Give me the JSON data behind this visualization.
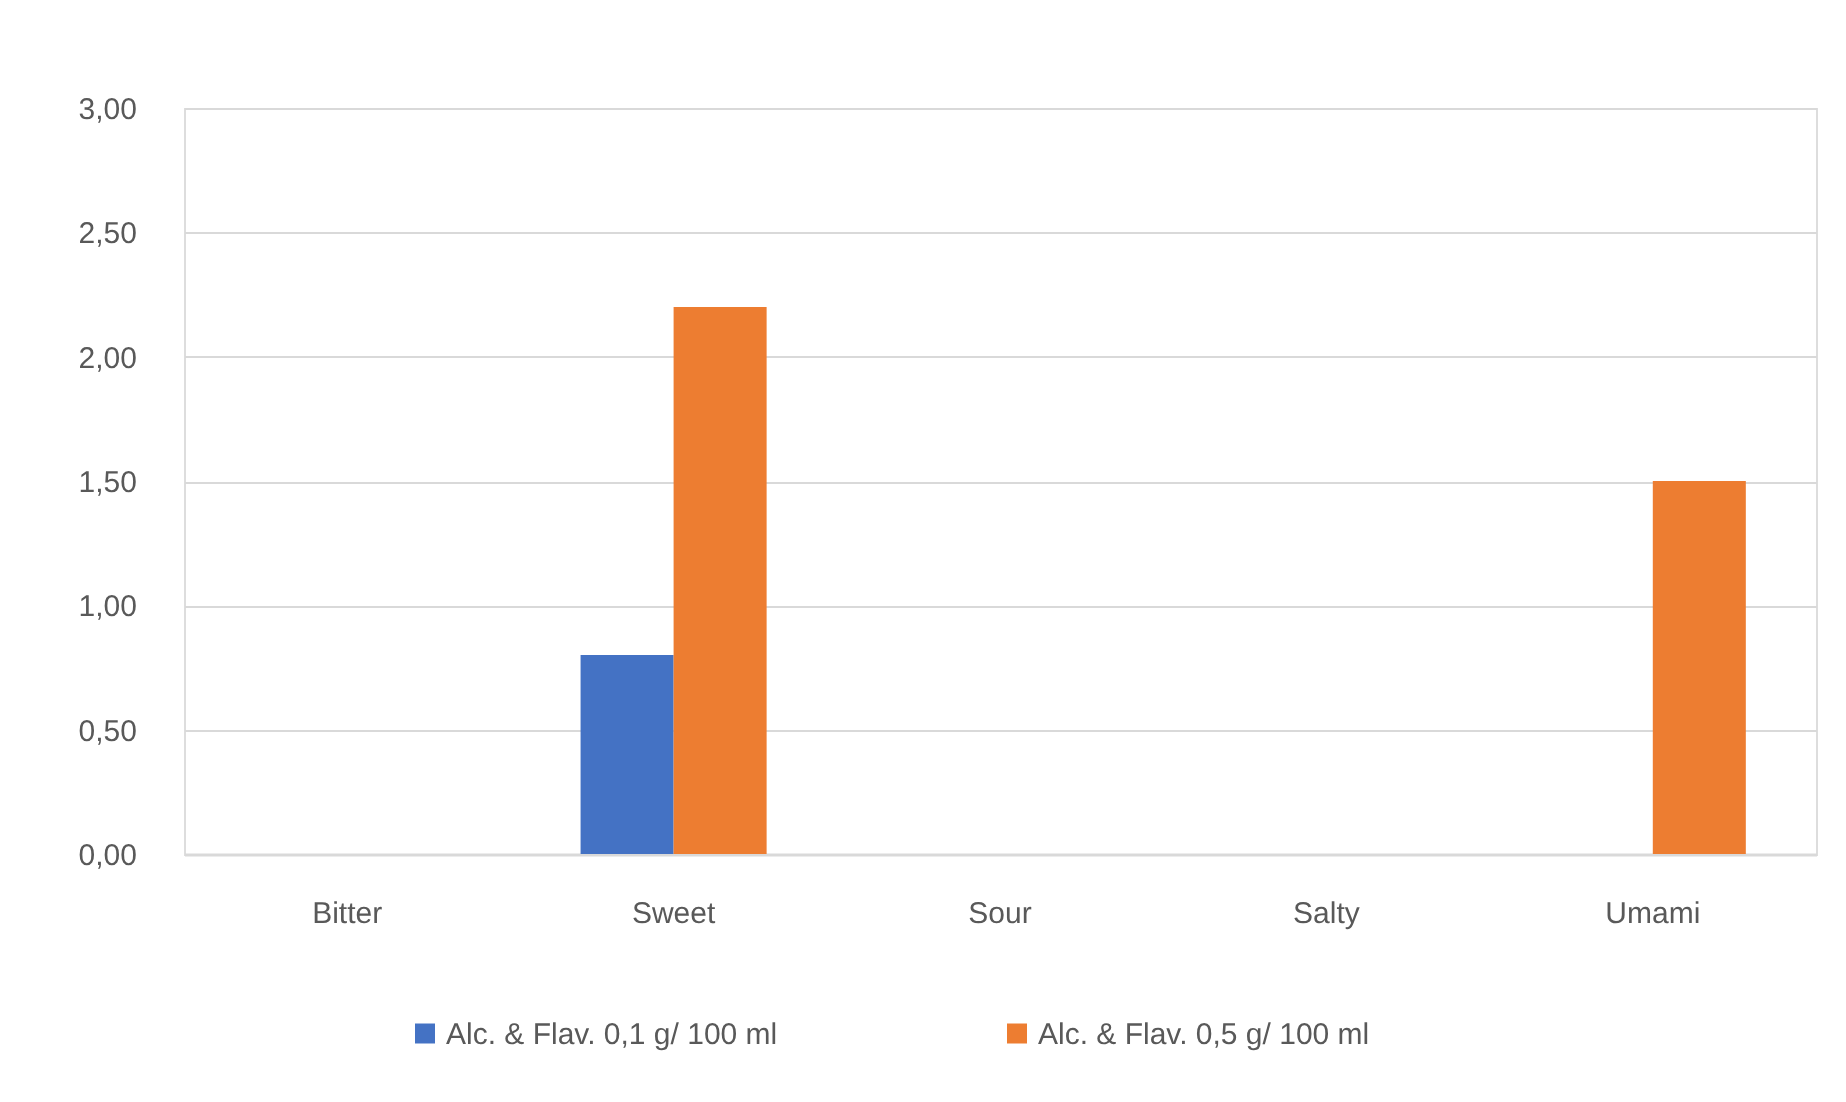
{
  "chart_data": {
    "type": "bar",
    "categories": [
      "Bitter",
      "Sweet",
      "Sour",
      "Salty",
      "Umami"
    ],
    "series": [
      {
        "name": "Alc. & Flav. 0,1 g/ 100 ml",
        "color": "#4472c4",
        "values": [
          null,
          0.8,
          null,
          null,
          null
        ]
      },
      {
        "name": "Alc. & Flav. 0,5 g/ 100 ml",
        "color": "#ed7d31",
        "values": [
          null,
          2.2,
          null,
          null,
          1.5
        ]
      }
    ],
    "ylim": [
      0,
      3
    ],
    "yticks": [
      {
        "value": 0,
        "label": "0,00"
      },
      {
        "value": 0.5,
        "label": "0,50"
      },
      {
        "value": 1,
        "label": "1,00"
      },
      {
        "value": 1.5,
        "label": "1,50"
      },
      {
        "value": 2,
        "label": "2,00"
      },
      {
        "value": 2.5,
        "label": "2,50"
      },
      {
        "value": 3,
        "label": "3,00"
      }
    ],
    "grid": "y",
    "legend": "bottom"
  }
}
